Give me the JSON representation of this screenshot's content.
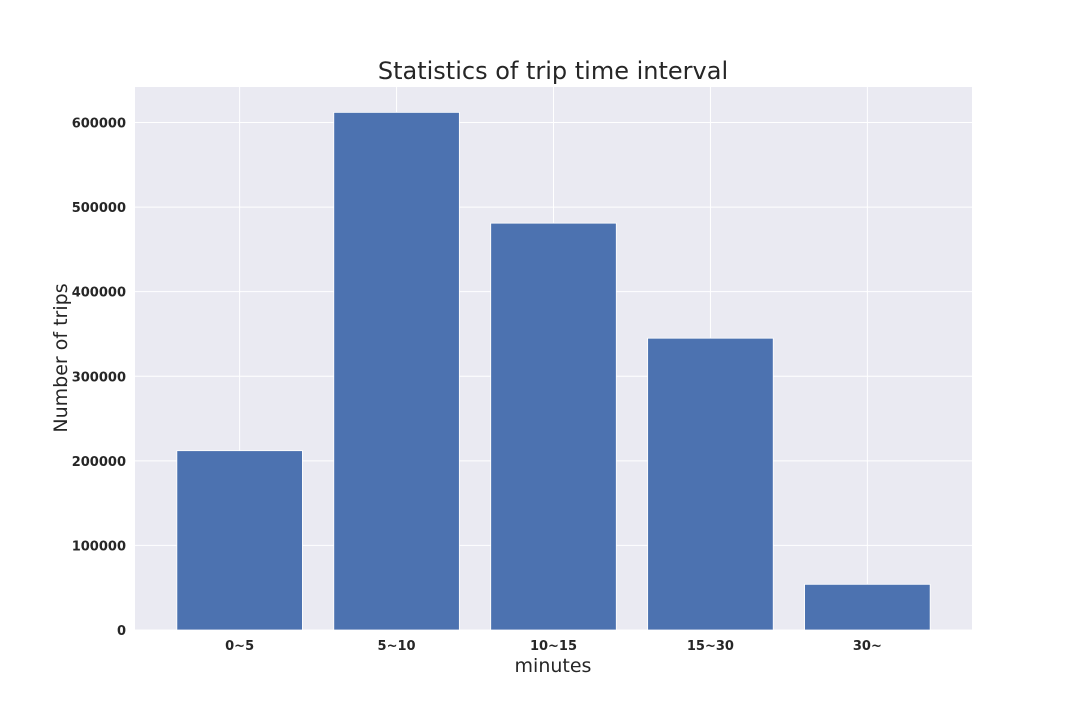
{
  "chart_data": {
    "type": "bar",
    "title": "Statistics of trip time interval",
    "xlabel": "minutes",
    "ylabel": "Number of trips",
    "categories": [
      "0~5",
      "5~10",
      "10~15",
      "15~30",
      "30~"
    ],
    "values": [
      212000,
      612000,
      481000,
      345000,
      54000
    ],
    "ylim": [
      0,
      642000
    ],
    "yticks": [
      0,
      100000,
      200000,
      300000,
      400000,
      500000,
      600000
    ],
    "ytick_labels": [
      "0",
      "100000",
      "200000",
      "300000",
      "400000",
      "500000",
      "600000"
    ],
    "grid": true,
    "legend": "none"
  },
  "colors": {
    "bar": "#4c72b0",
    "plot_background": "#eaeaf2",
    "grid": "#ffffff",
    "text": "#262626"
  }
}
